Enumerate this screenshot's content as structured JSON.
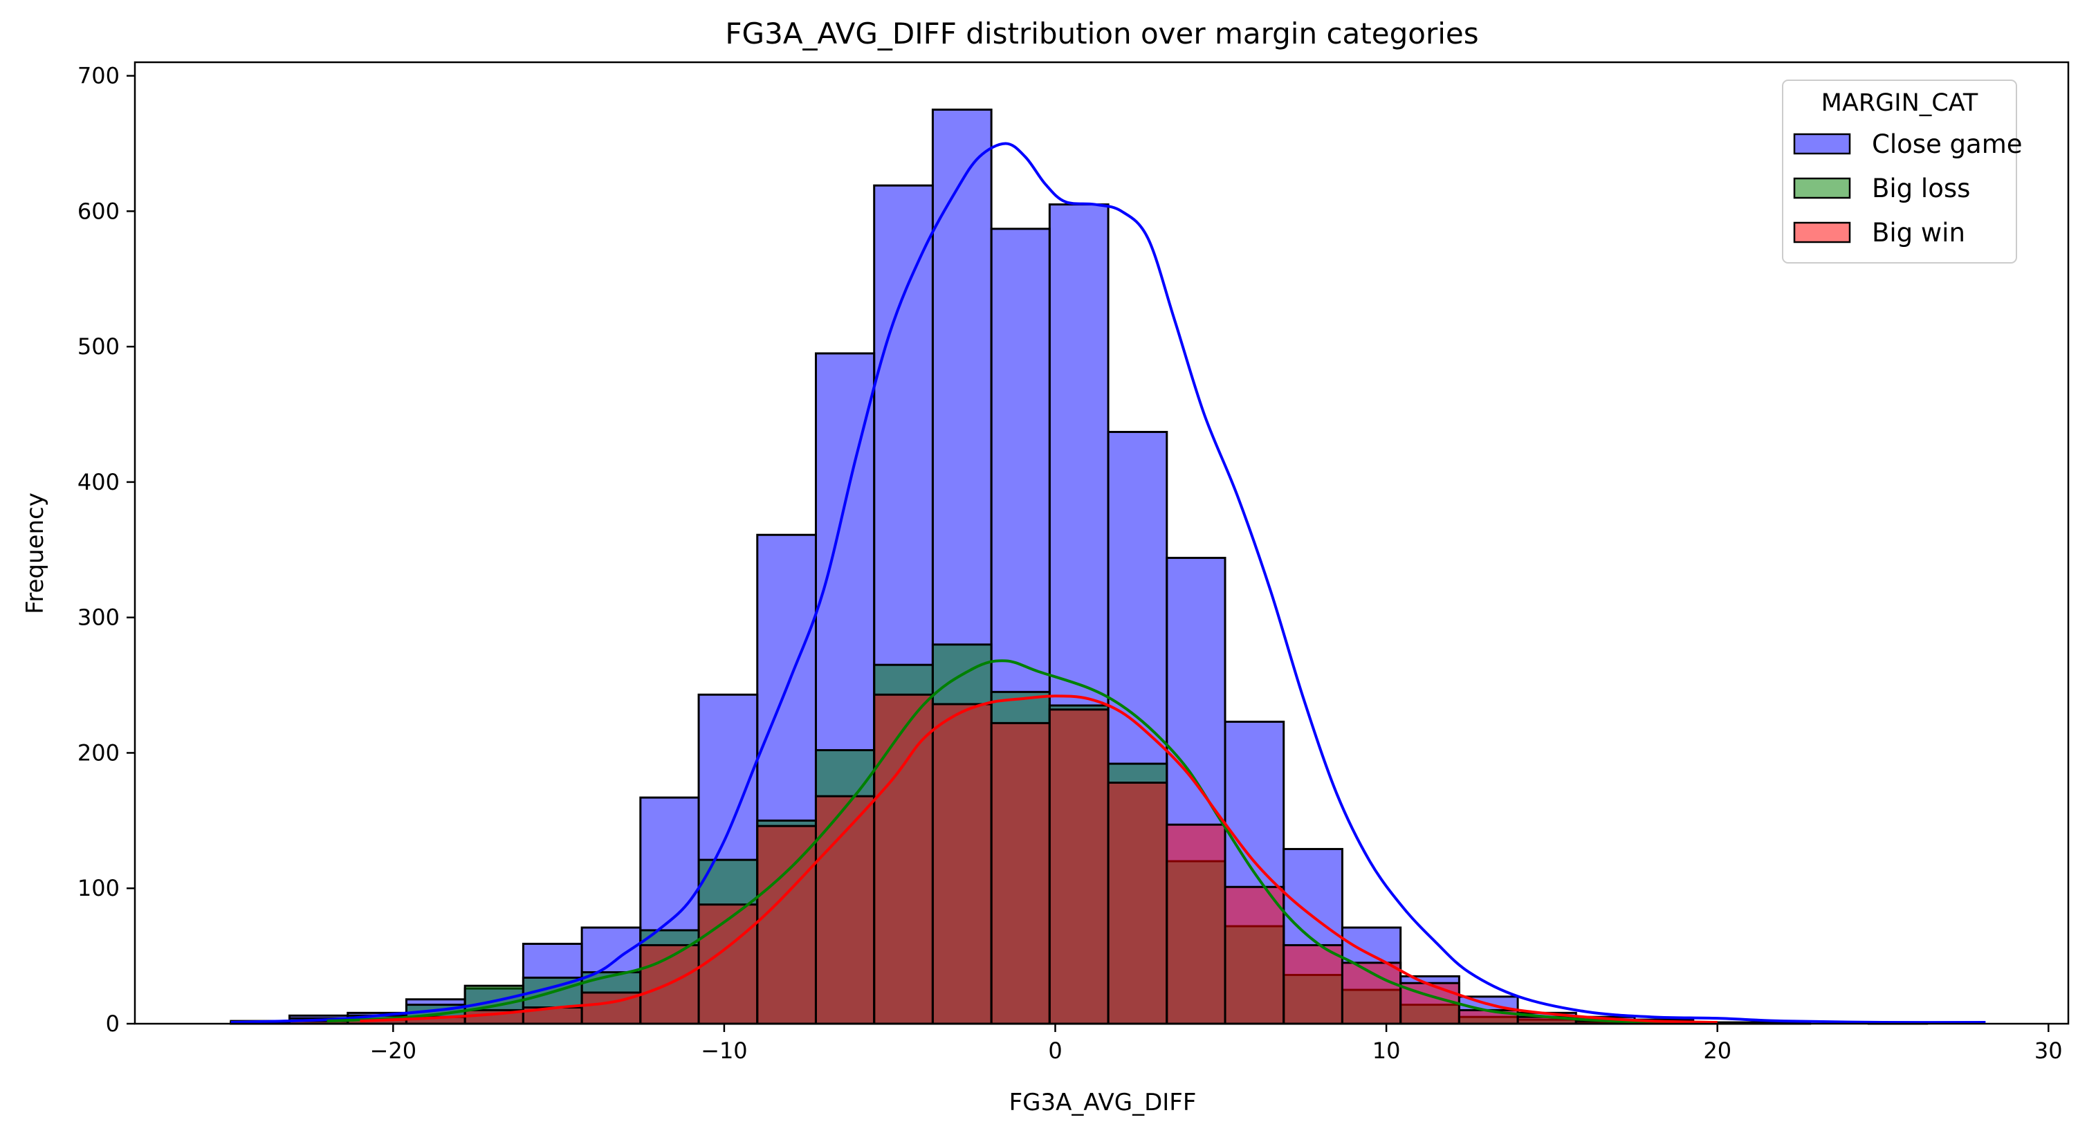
{
  "chart_data": {
    "type": "histogram",
    "title": "FG3A_AVG_DIFF distribution over margin categories",
    "xlabel": "FG3A_AVG_DIFF",
    "ylabel": "Frequency",
    "xlim": [
      -27.8,
      30.6
    ],
    "ylim": [
      0,
      710
    ],
    "xticks": [
      -20,
      -10,
      0,
      10,
      20,
      30
    ],
    "yticks": [
      0,
      100,
      200,
      300,
      400,
      500,
      600,
      700
    ],
    "xtick_labels": [
      "−20",
      "−10",
      "0",
      "10",
      "20",
      "30"
    ],
    "ytick_labels": [
      "0",
      "100",
      "200",
      "300",
      "400",
      "500",
      "600",
      "700"
    ],
    "grid": false,
    "legend_position": "top-right",
    "legend_title": "MARGIN_CAT",
    "bin_edges": [
      -24.9,
      -23.13,
      -21.37,
      -19.6,
      -17.83,
      -16.07,
      -14.3,
      -12.53,
      -10.77,
      -9.0,
      -7.23,
      -5.47,
      -3.7,
      -1.93,
      -0.17,
      1.6,
      3.37,
      5.13,
      6.9,
      8.67,
      10.43,
      12.2,
      13.97,
      15.73,
      17.5,
      19.27,
      21.03,
      22.8,
      24.57,
      26.33,
      28.1
    ],
    "series": [
      {
        "name": "Close game",
        "color": "#0000ff",
        "values": [
          2,
          6,
          8,
          18,
          26,
          59,
          71,
          167,
          243,
          361,
          495,
          619,
          675,
          587,
          605,
          437,
          344,
          223,
          129,
          71,
          35,
          20,
          8,
          5,
          3,
          1,
          1,
          0,
          1,
          0
        ],
        "kde": [
          [
            -24.9,
            1
          ],
          [
            -22,
            3
          ],
          [
            -20,
            7
          ],
          [
            -18,
            12
          ],
          [
            -16,
            22
          ],
          [
            -14,
            36
          ],
          [
            -13,
            52
          ],
          [
            -12,
            69
          ],
          [
            -11,
            92
          ],
          [
            -10,
            135
          ],
          [
            -9,
            195
          ],
          [
            -8,
            255
          ],
          [
            -7,
            320
          ],
          [
            -6,
            420
          ],
          [
            -5,
            510
          ],
          [
            -4,
            570
          ],
          [
            -3,
            615
          ],
          [
            -2.3,
            640
          ],
          [
            -1.5,
            650
          ],
          [
            -0.9,
            640
          ],
          [
            -0.3,
            620
          ],
          [
            0.3,
            607
          ],
          [
            1.2,
            605
          ],
          [
            2,
            600
          ],
          [
            2.8,
            580
          ],
          [
            3.6,
            520
          ],
          [
            4.5,
            450
          ],
          [
            5.5,
            390
          ],
          [
            6.5,
            320
          ],
          [
            7.5,
            240
          ],
          [
            8.5,
            170
          ],
          [
            9.5,
            120
          ],
          [
            10.5,
            86
          ],
          [
            11.5,
            60
          ],
          [
            12.5,
            38
          ],
          [
            14,
            20
          ],
          [
            16,
            9
          ],
          [
            18,
            5
          ],
          [
            20,
            4
          ],
          [
            22,
            2
          ],
          [
            25,
            1
          ],
          [
            28.1,
            1
          ]
        ]
      },
      {
        "name": "Big loss",
        "color": "#008000",
        "values": [
          1,
          4,
          6,
          14,
          28,
          34,
          38,
          69,
          121,
          150,
          202,
          265,
          280,
          245,
          235,
          192,
          120,
          72,
          36,
          25,
          14,
          5,
          3,
          1,
          0,
          0,
          0,
          0,
          0,
          0
        ],
        "kde": [
          [
            -22,
            2
          ],
          [
            -20,
            4
          ],
          [
            -18,
            9
          ],
          [
            -16,
            18
          ],
          [
            -14,
            32
          ],
          [
            -12,
            45
          ],
          [
            -10,
            75
          ],
          [
            -8,
            115
          ],
          [
            -6,
            170
          ],
          [
            -4,
            235
          ],
          [
            -2.5,
            262
          ],
          [
            -1.5,
            268
          ],
          [
            -0.5,
            260
          ],
          [
            1,
            248
          ],
          [
            2,
            235
          ],
          [
            3,
            215
          ],
          [
            4,
            188
          ],
          [
            5,
            150
          ],
          [
            6,
            112
          ],
          [
            7,
            80
          ],
          [
            8,
            58
          ],
          [
            9,
            45
          ],
          [
            10,
            32
          ],
          [
            11,
            23
          ],
          [
            12,
            16
          ],
          [
            13,
            10
          ],
          [
            14,
            7
          ],
          [
            16,
            3
          ],
          [
            18,
            1
          ],
          [
            20,
            1
          ]
        ]
      },
      {
        "name": "Big win",
        "color": "#ff0000",
        "values": [
          0,
          2,
          3,
          5,
          10,
          12,
          23,
          58,
          88,
          146,
          168,
          243,
          236,
          222,
          232,
          178,
          147,
          101,
          58,
          45,
          30,
          10,
          5,
          2,
          1,
          0,
          0,
          0,
          0,
          0
        ],
        "kde": [
          [
            -21,
            2
          ],
          [
            -19,
            4
          ],
          [
            -17,
            7
          ],
          [
            -15,
            12
          ],
          [
            -13,
            18
          ],
          [
            -11,
            38
          ],
          [
            -9,
            75
          ],
          [
            -7,
            125
          ],
          [
            -5,
            178
          ],
          [
            -4,
            210
          ],
          [
            -3,
            228
          ],
          [
            -2,
            237
          ],
          [
            -1,
            240
          ],
          [
            0,
            242
          ],
          [
            1,
            240
          ],
          [
            2,
            230
          ],
          [
            3,
            210
          ],
          [
            4,
            185
          ],
          [
            5,
            152
          ],
          [
            6,
            120
          ],
          [
            7,
            95
          ],
          [
            8,
            75
          ],
          [
            9,
            58
          ],
          [
            10,
            45
          ],
          [
            11,
            32
          ],
          [
            12,
            23
          ],
          [
            13,
            15
          ],
          [
            14,
            10
          ],
          [
            16,
            5
          ],
          [
            18,
            2
          ],
          [
            20,
            1
          ]
        ]
      }
    ]
  }
}
